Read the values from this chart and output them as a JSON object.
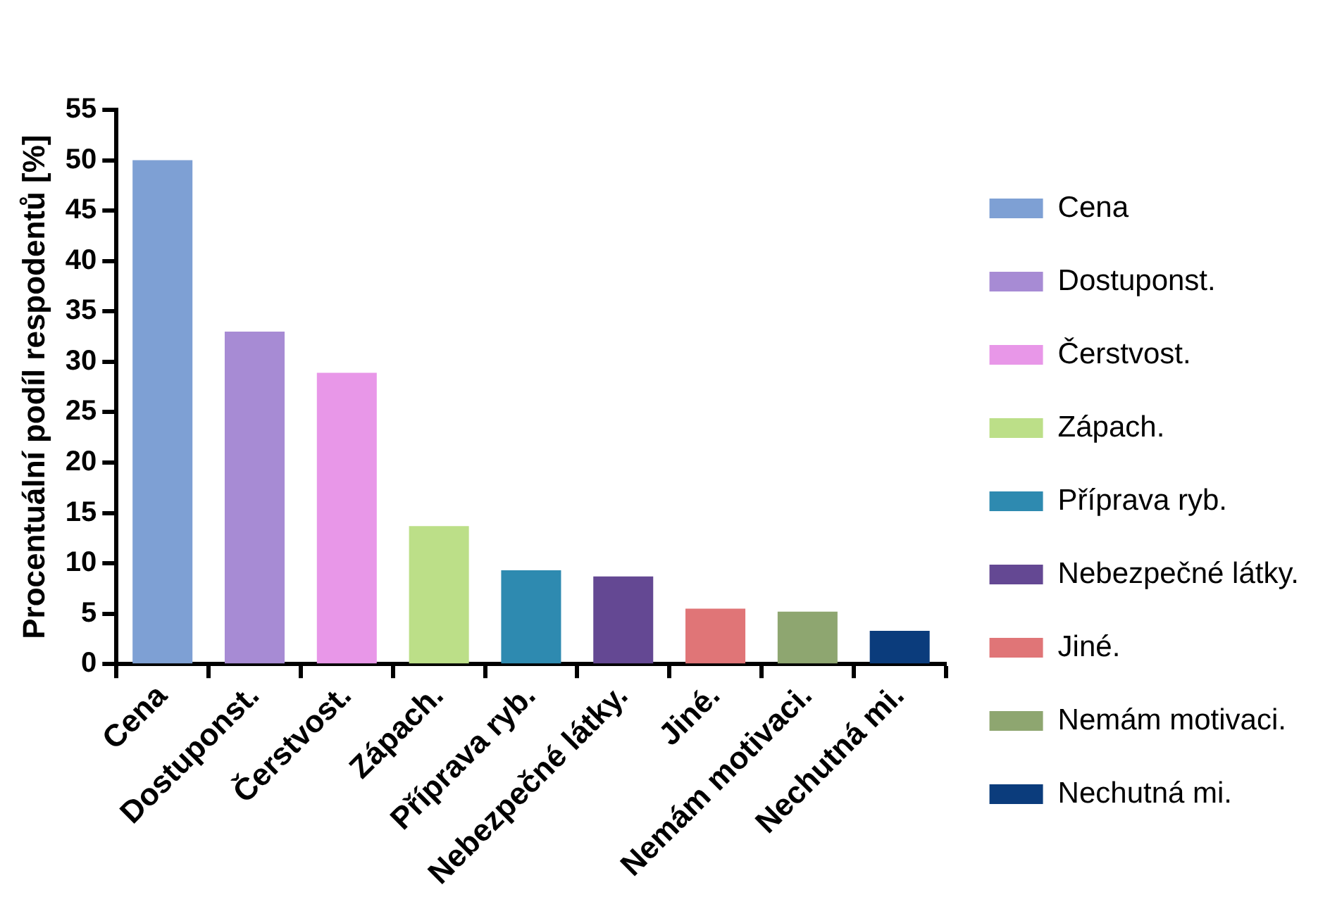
{
  "chart_data": {
    "type": "bar",
    "ylabel": "Procentuální podíl respodentů [%]",
    "categories": [
      "Cena",
      "Dostuponst.",
      "Čerstvost.",
      "Zápach.",
      "Příprava ryb.",
      "Nebezpečné látky.",
      "Jiné.",
      "Nemám motivaci.",
      "Nechutná mi."
    ],
    "series": [
      {
        "name": "Cena",
        "color": "#7ea0d4",
        "values": [
          50,
          null,
          null,
          null,
          null,
          null,
          null,
          null,
          null
        ]
      },
      {
        "name": "Dostuponst.",
        "color": "#a78bd4",
        "values": [
          null,
          33,
          null,
          null,
          null,
          null,
          null,
          null,
          null
        ]
      },
      {
        "name": "Čerstvost.",
        "color": "#e897e8",
        "values": [
          null,
          null,
          28.9,
          null,
          null,
          null,
          null,
          null,
          null
        ]
      },
      {
        "name": "Zápach.",
        "color": "#bcdf88",
        "values": [
          null,
          null,
          null,
          13.7,
          null,
          null,
          null,
          null,
          null
        ]
      },
      {
        "name": "Příprava ryb.",
        "color": "#2e8ab0",
        "values": [
          null,
          null,
          null,
          null,
          9.3,
          null,
          null,
          null,
          null
        ]
      },
      {
        "name": "Nebezpečné látky.",
        "color": "#644893",
        "values": [
          null,
          null,
          null,
          null,
          null,
          8.7,
          null,
          null,
          null
        ]
      },
      {
        "name": "Jiné.",
        "color": "#e07577",
        "values": [
          null,
          null,
          null,
          null,
          null,
          null,
          5.5,
          null,
          null
        ]
      },
      {
        "name": "Nemám motivaci.",
        "color": "#8ea670",
        "values": [
          null,
          null,
          null,
          null,
          null,
          null,
          null,
          5.2,
          null
        ]
      },
      {
        "name": "Nechutná mi.",
        "color": "#0b3c7c",
        "values": [
          null,
          null,
          null,
          null,
          null,
          null,
          null,
          null,
          3.3
        ]
      }
    ],
    "ylim": [
      0,
      55
    ],
    "yticks": [
      0,
      5,
      10,
      15,
      20,
      25,
      30,
      35,
      40,
      45,
      50,
      55
    ],
    "grid": false,
    "legend": "right"
  }
}
